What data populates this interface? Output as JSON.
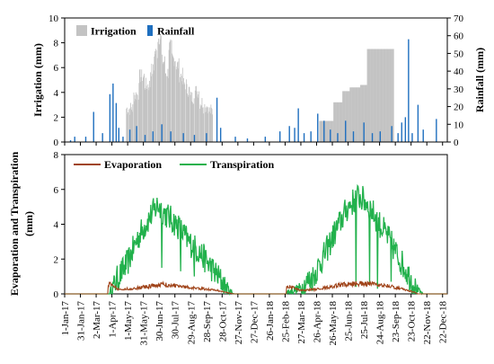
{
  "colors": {
    "irrigation": "#c3c3c3",
    "rainfall": "#1f6fbf",
    "evaporation": "#a0441a",
    "transpiration": "#22b14c"
  },
  "chart_data": [
    {
      "type": "bar",
      "x_axis": "shared-date",
      "title": "",
      "ylabel_left": "Irrigation (mm)",
      "ylabel_right": "Rainfall (mm)",
      "ylim_left": [
        0,
        10
      ],
      "ylim_right": [
        0,
        70
      ],
      "yticks_left": [
        "0",
        "2",
        "4",
        "6",
        "8",
        "10"
      ],
      "yticks_right": [
        "0",
        "10",
        "20",
        "30",
        "40",
        "50",
        "60",
        "70"
      ],
      "legend": {
        "placement": "top-left",
        "entries": [
          "Irrigation",
          "Rainfall"
        ]
      },
      "series": [
        {
          "name": "Irrigation",
          "axis": "left",
          "step_points": [
            [
              "2017-04-28",
              2.7
            ],
            [
              "2017-05-12",
              3.8
            ],
            [
              "2017-05-22",
              5.3
            ],
            [
              "2017-06-02",
              4.6
            ],
            [
              "2017-06-13",
              5.8
            ],
            [
              "2017-06-20",
              7.2
            ],
            [
              "2017-06-27",
              8.4
            ],
            [
              "2017-07-04",
              6.5
            ],
            [
              "2017-07-11",
              5.6
            ],
            [
              "2017-07-18",
              7.7
            ],
            [
              "2017-07-24",
              6.7
            ],
            [
              "2017-07-31",
              6.2
            ],
            [
              "2017-08-07",
              5.4
            ],
            [
              "2017-08-14",
              4.7
            ],
            [
              "2017-08-21",
              4.2
            ],
            [
              "2017-08-28",
              3.6
            ],
            [
              "2017-09-04",
              4.1
            ],
            [
              "2017-09-14",
              3.2
            ],
            [
              "2017-09-22",
              2.9
            ],
            [
              "2017-10-01",
              2.5
            ],
            [
              "2017-10-10",
              0
            ],
            [
              "2018-05-01",
              1.7
            ],
            [
              "2018-05-28",
              3.2
            ],
            [
              "2018-06-14",
              4.1
            ],
            [
              "2018-06-28",
              4.4
            ],
            [
              "2018-07-18",
              4.6
            ],
            [
              "2018-07-31",
              7.5
            ],
            [
              "2018-09-20",
              0
            ]
          ]
        },
        {
          "name": "Rainfall",
          "axis": "right",
          "events": [
            [
              "2017-01-12",
              1
            ],
            [
              "2017-01-20",
              3
            ],
            [
              "2017-02-10",
              3
            ],
            [
              "2017-02-25",
              17
            ],
            [
              "2017-03-14",
              5
            ],
            [
              "2017-03-28",
              27
            ],
            [
              "2017-04-03",
              33
            ],
            [
              "2017-04-09",
              22
            ],
            [
              "2017-04-14",
              8
            ],
            [
              "2017-04-22",
              3
            ],
            [
              "2017-05-05",
              7
            ],
            [
              "2017-05-18",
              9
            ],
            [
              "2017-06-03",
              4
            ],
            [
              "2017-06-18",
              6
            ],
            [
              "2017-07-05",
              10
            ],
            [
              "2017-07-22",
              6
            ],
            [
              "2017-08-15",
              5
            ],
            [
              "2017-09-05",
              4
            ],
            [
              "2017-09-28",
              5
            ],
            [
              "2017-10-18",
              25
            ],
            [
              "2017-10-25",
              8
            ],
            [
              "2017-11-22",
              3
            ],
            [
              "2017-12-15",
              2
            ],
            [
              "2018-01-18",
              3
            ],
            [
              "2018-02-15",
              6
            ],
            [
              "2018-03-05",
              9
            ],
            [
              "2018-03-15",
              8
            ],
            [
              "2018-03-22",
              19
            ],
            [
              "2018-04-02",
              5
            ],
            [
              "2018-04-15",
              6
            ],
            [
              "2018-04-28",
              16
            ],
            [
              "2018-05-10",
              12
            ],
            [
              "2018-05-22",
              7
            ],
            [
              "2018-06-05",
              5
            ],
            [
              "2018-06-20",
              12
            ],
            [
              "2018-07-05",
              6
            ],
            [
              "2018-07-25",
              11
            ],
            [
              "2018-08-10",
              5
            ],
            [
              "2018-08-25",
              6
            ],
            [
              "2018-09-16",
              9
            ],
            [
              "2018-09-28",
              5
            ],
            [
              "2018-10-05",
              11
            ],
            [
              "2018-10-12",
              14
            ],
            [
              "2018-10-18",
              58
            ],
            [
              "2018-10-25",
              5
            ],
            [
              "2018-11-05",
              21
            ],
            [
              "2018-11-15",
              7
            ],
            [
              "2018-12-10",
              13
            ]
          ]
        }
      ]
    },
    {
      "type": "line",
      "x_axis": "shared-date",
      "ylabel": "Evaporation and Transpiration (mm)",
      "ylim": [
        0,
        8
      ],
      "yticks": [
        "0",
        "2",
        "4",
        "6",
        "8"
      ],
      "legend": {
        "placement": "top",
        "entries": [
          "Evaporation",
          "Transpiration"
        ]
      },
      "series": [
        {
          "name": "Evaporation",
          "seasons": [
            {
              "start": "2017-03-25",
              "points": [
                [
                  "2017-03-25",
                  0.6
                ],
                [
                  "2017-04-15",
                  0.25
                ],
                [
                  "2017-05-10",
                  0.3
                ],
                [
                  "2017-06-15",
                  0.45
                ],
                [
                  "2017-07-01",
                  0.55
                ],
                [
                  "2017-07-20",
                  0.5
                ],
                [
                  "2017-08-20",
                  0.4
                ],
                [
                  "2017-09-20",
                  0.3
                ],
                [
                  "2017-10-20",
                  0.2
                ],
                [
                  "2017-11-10",
                  0.05
                ],
                [
                  "2017-11-20",
                  0
                ]
              ]
            },
            {
              "start": "2018-02-28",
              "points": [
                [
                  "2018-02-28",
                  0.5
                ],
                [
                  "2018-03-25",
                  0.2
                ],
                [
                  "2018-04-20",
                  0.25
                ],
                [
                  "2018-05-20",
                  0.4
                ],
                [
                  "2018-06-20",
                  0.55
                ],
                [
                  "2018-07-10",
                  0.6
                ],
                [
                  "2018-08-10",
                  0.55
                ],
                [
                  "2018-09-10",
                  0.45
                ],
                [
                  "2018-10-10",
                  0.25
                ],
                [
                  "2018-10-30",
                  0.1
                ],
                [
                  "2018-11-05",
                  0
                ]
              ]
            }
          ]
        },
        {
          "name": "Transpiration",
          "seasons": [
            {
              "start": "2017-03-28",
              "points": [
                [
                  "2017-03-28",
                  0.1
                ],
                [
                  "2017-04-10",
                  0.8
                ],
                [
                  "2017-05-01",
                  1.8
                ],
                [
                  "2017-05-20",
                  3.2
                ],
                [
                  "2017-06-10",
                  4.3
                ],
                [
                  "2017-06-27",
                  5.1
                ],
                [
                  "2017-07-15",
                  4.5
                ],
                [
                  "2017-08-05",
                  3.9
                ],
                [
                  "2017-08-25",
                  3.0
                ],
                [
                  "2017-09-15",
                  2.4
                ],
                [
                  "2017-10-05",
                  1.6
                ],
                [
                  "2017-10-25",
                  0.8
                ],
                [
                  "2017-11-10",
                  0.2
                ],
                [
                  "2017-11-20",
                  0
                ]
              ],
              "dips": [
                [
                  "2017-07-05",
                  1.5
                ],
                [
                  "2017-08-10",
                  1.3
                ],
                [
                  "2017-09-05",
                  1.0
                ]
              ]
            },
            {
              "start": "2018-03-01",
              "points": [
                [
                  "2018-03-01",
                  0.1
                ],
                [
                  "2018-03-25",
                  0.3
                ],
                [
                  "2018-04-20",
                  1.0
                ],
                [
                  "2018-05-10",
                  2.2
                ],
                [
                  "2018-06-01",
                  3.6
                ],
                [
                  "2018-06-25",
                  5.0
                ],
                [
                  "2018-07-15",
                  5.6
                ],
                [
                  "2018-08-01",
                  5.2
                ],
                [
                  "2018-08-20",
                  4.2
                ],
                [
                  "2018-09-10",
                  3.2
                ],
                [
                  "2018-10-01",
                  2.0
                ],
                [
                  "2018-10-20",
                  1.0
                ],
                [
                  "2018-11-05",
                  0.2
                ],
                [
                  "2018-11-15",
                  0
                ]
              ],
              "dips": [
                [
                  "2018-07-10",
                  0.4
                ],
                [
                  "2018-08-05",
                  0.6
                ],
                [
                  "2018-08-20",
                  0.3
                ],
                [
                  "2018-09-15",
                  0.7
                ]
              ]
            }
          ]
        }
      ],
      "x_tick_labels": [
        "1-Jan-17",
        "31-Jan-17",
        "2-Mar-17",
        "1-Apr-17",
        "1-May-17",
        "31-May-17",
        "30-Jun-17",
        "30-Jul-17",
        "29-Aug-17",
        "28-Sep-17",
        "28-Oct-17",
        "27-Nov-17",
        "27-Dec-17",
        "26-Jan-18",
        "25-Feb-18",
        "27-Mar-18",
        "26-Apr-18",
        "26-May-18",
        "25-Jun-18",
        "25-Jul-18",
        "24-Aug-18",
        "23-Sep-18",
        "23-Oct-18",
        "22-Nov-18",
        "22-Dec-18"
      ]
    }
  ]
}
